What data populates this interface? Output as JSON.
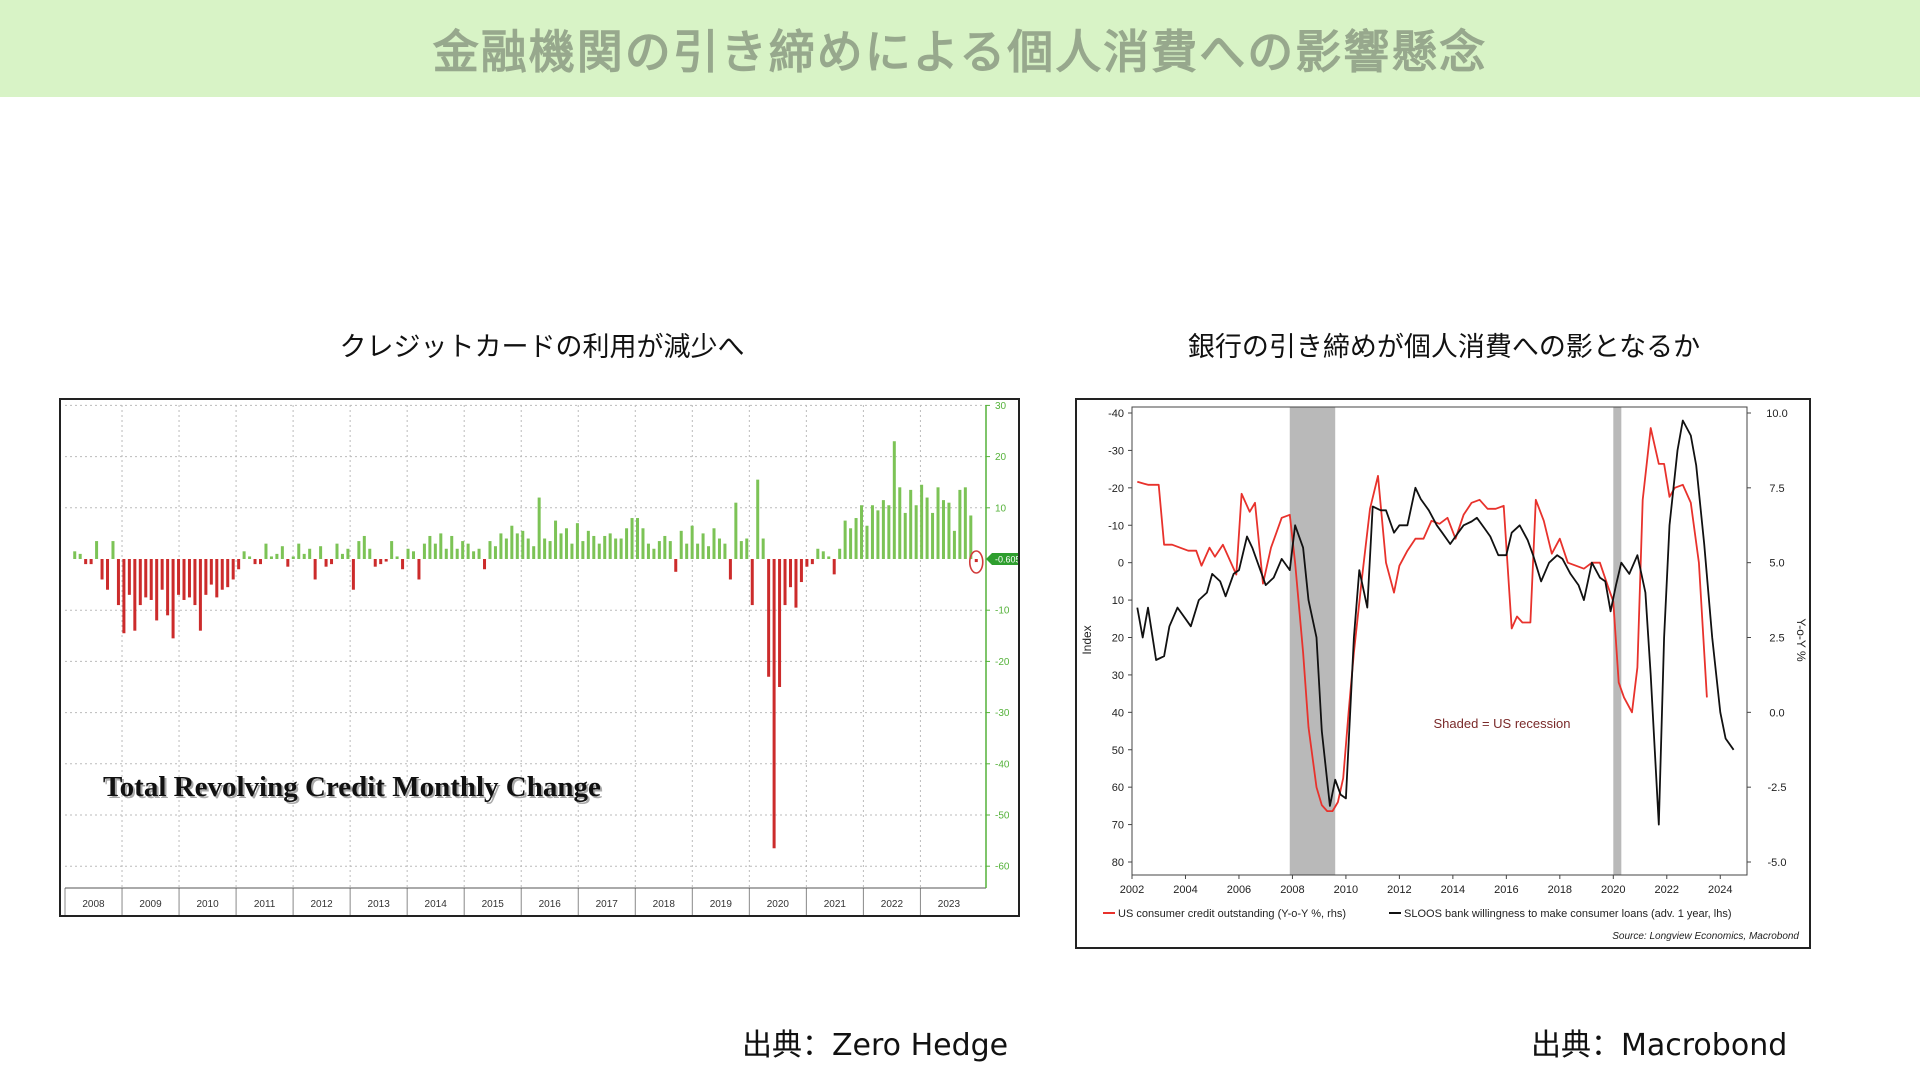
{
  "page": {
    "title": "金融機関の引き締めによる個人消費への影響懸念",
    "left_caption": "クレジットカードの利用が減少へ",
    "right_caption": "銀行の引き締めが個人消費への影となるか",
    "left_source": "出典：Zero Hedge",
    "right_source": "出典：Macrobond"
  },
  "colors": {
    "banner": "#d8f3c6",
    "title_text": "#97a88d",
    "positive_bar": "#7cc356",
    "negative_bar": "#cc2b2b",
    "red_line": "#e8322c",
    "black_line": "#111111",
    "shading": "#b9b9b9"
  },
  "chart_data": [
    {
      "type": "bar",
      "title": "Total Revolving Credit Monthly Change",
      "ylim": [
        -63,
        30
      ],
      "yticks": [
        "30",
        "20",
        "10",
        "-10",
        "-20",
        "-30",
        "-40",
        "-50",
        "-60"
      ],
      "ytick_values": [
        30,
        20,
        10,
        -10,
        -20,
        -30,
        -40,
        -50,
        -60
      ],
      "xtick_labels": [
        "2008",
        "2009",
        "2010",
        "2011",
        "2012",
        "2013",
        "2014",
        "2015",
        "2016",
        "2017",
        "2018",
        "2019",
        "2020",
        "2021",
        "2022",
        "2023"
      ],
      "x_start": 2008.0,
      "x_end": 2024.15,
      "last_value_label": "-0.605",
      "grid": true,
      "values": [
        1.5,
        1.0,
        -1.0,
        -1.0,
        3.5,
        -4.0,
        -6.0,
        3.5,
        -9.0,
        -14.5,
        -7.0,
        -14.0,
        -9.0,
        -7.5,
        -8.0,
        -12.0,
        -6.0,
        -11.0,
        -15.5,
        -7.0,
        -8.0,
        -7.5,
        -9.0,
        -14.0,
        -7.0,
        -5.0,
        -7.5,
        -6.0,
        -5.5,
        -4.0,
        -2.0,
        1.5,
        0.5,
        -1.0,
        -1.0,
        3.0,
        0.5,
        1.0,
        2.5,
        -1.5,
        0.5,
        3.0,
        1.0,
        2.0,
        -4.0,
        2.5,
        -1.5,
        -1.0,
        3.0,
        1.0,
        2.0,
        -6.0,
        3.5,
        4.5,
        2.0,
        -1.5,
        -1.0,
        -0.5,
        3.5,
        0.5,
        -2.0,
        2.0,
        1.5,
        -4.0,
        3.0,
        4.5,
        3.0,
        5.0,
        2.0,
        4.5,
        2.0,
        3.5,
        3.0,
        1.5,
        2.0,
        -2.0,
        3.5,
        2.5,
        5.0,
        4.0,
        6.5,
        5.0,
        5.5,
        4.0,
        2.5,
        12.0,
        4.0,
        3.5,
        7.5,
        5.0,
        6.0,
        3.0,
        7.0,
        3.5,
        5.5,
        4.5,
        3.0,
        4.5,
        5.0,
        4.0,
        4.0,
        6.0,
        8.0,
        8.0,
        6.0,
        3.0,
        2.0,
        3.5,
        4.5,
        3.5,
        -2.5,
        5.5,
        3.0,
        6.5,
        3.0,
        5.0,
        2.5,
        6.0,
        4.0,
        3.0,
        -4.0,
        11.0,
        3.5,
        4.0,
        -9.0,
        15.5,
        4.0,
        -23.0,
        -56.5,
        -25.0,
        -9.0,
        -5.5,
        -9.5,
        -4.5,
        -1.5,
        -1.0,
        2.0,
        1.5,
        0.5,
        -3.0,
        2.0,
        7.5,
        6.0,
        8.0,
        10.5,
        6.5,
        10.5,
        9.5,
        11.5,
        10.5,
        23.0,
        14.0,
        9.0,
        13.5,
        10.5,
        14.5,
        12.0,
        9.0,
        14.0,
        11.5,
        11.0,
        5.5,
        13.5,
        14.0,
        8.5,
        -0.6
      ]
    },
    {
      "type": "line",
      "xlabel": "",
      "ylabel_left": "Index",
      "ylabel_right": "Y-o-Y %",
      "xlim": [
        2002,
        2025
      ],
      "ylim_left": [
        -40,
        80
      ],
      "ylim_right": [
        -5.0,
        10.0
      ],
      "left_axis_inverted": true,
      "xticks": [
        "2002",
        "2004",
        "2006",
        "2008",
        "2010",
        "2012",
        "2014",
        "2016",
        "2018",
        "2020",
        "2022",
        "2024"
      ],
      "xtick_values": [
        2002,
        2004,
        2006,
        2008,
        2010,
        2012,
        2014,
        2016,
        2018,
        2020,
        2022,
        2024
      ],
      "yticks_left": [
        "-40",
        "-30",
        "-20",
        "-10",
        "0",
        "10",
        "20",
        "30",
        "40",
        "50",
        "60",
        "70",
        "80"
      ],
      "ytick_values_left": [
        -40,
        -30,
        -20,
        -10,
        0,
        10,
        20,
        30,
        40,
        50,
        60,
        70,
        80
      ],
      "yticks_right": [
        "10.0",
        "7.5",
        "5.0",
        "2.5",
        "0.0",
        "-2.5",
        "-5.0"
      ],
      "ytick_values_right": [
        10.0,
        7.5,
        5.0,
        2.5,
        0.0,
        -2.5,
        -5.0
      ],
      "shaded_periods": [
        [
          2007.9,
          2009.6
        ],
        [
          2020.0,
          2020.3
        ]
      ],
      "annotation": "Shaded = US recession",
      "legend_position": "bottom",
      "source_note": "Source: Longview Economics, Macrobond",
      "series": [
        {
          "name": "US consumer credit outstanding (Y-o-Y %, rhs)",
          "axis": "right",
          "color": "#e8322c",
          "x": [
            2002.2,
            2002.6,
            2003.0,
            2003.2,
            2003.5,
            2003.8,
            2004.1,
            2004.4,
            2004.6,
            2004.9,
            2005.1,
            2005.4,
            2005.6,
            2005.9,
            2006.1,
            2006.4,
            2006.6,
            2006.9,
            2007.2,
            2007.4,
            2007.6,
            2007.9,
            2008.1,
            2008.4,
            2008.6,
            2008.9,
            2009.1,
            2009.3,
            2009.5,
            2009.7,
            2009.9,
            2010.1,
            2010.3,
            2010.6,
            2010.9,
            2011.2,
            2011.5,
            2011.8,
            2012.0,
            2012.3,
            2012.6,
            2012.9,
            2013.2,
            2013.5,
            2013.8,
            2014.1,
            2014.4,
            2014.7,
            2015.0,
            2015.3,
            2015.6,
            2015.9,
            2016.2,
            2016.4,
            2016.6,
            2016.9,
            2017.1,
            2017.4,
            2017.7,
            2018.0,
            2018.3,
            2018.6,
            2018.9,
            2019.2,
            2019.5,
            2019.8,
            2020.0,
            2020.2,
            2020.4,
            2020.7,
            2020.9,
            2021.1,
            2021.4,
            2021.7,
            2021.9,
            2022.1,
            2022.3,
            2022.6,
            2022.9,
            2023.2,
            2023.5
          ],
          "values": [
            7.7,
            7.6,
            7.6,
            5.6,
            5.6,
            5.5,
            5.4,
            5.4,
            4.9,
            5.5,
            5.2,
            5.6,
            5.2,
            4.6,
            7.3,
            6.7,
            7.0,
            4.3,
            5.5,
            6.0,
            6.5,
            6.6,
            5.0,
            2.0,
            -0.5,
            -2.5,
            -3.1,
            -3.3,
            -3.3,
            -3.0,
            -2.2,
            0.0,
            2.0,
            4.5,
            6.8,
            7.9,
            5.0,
            4.0,
            4.9,
            5.4,
            5.8,
            5.8,
            6.4,
            6.3,
            6.5,
            5.8,
            6.6,
            7.0,
            7.1,
            6.8,
            6.8,
            6.9,
            2.8,
            3.2,
            3.0,
            3.0,
            7.1,
            6.4,
            5.3,
            5.8,
            5.0,
            4.9,
            4.8,
            5.0,
            5.0,
            4.2,
            3.7,
            1.0,
            0.5,
            0.0,
            1.5,
            7.1,
            9.5,
            8.3,
            8.3,
            7.2,
            7.5,
            7.6,
            7.0,
            5.0,
            0.5
          ],
          "value_ticks_note": "Right axis Y-o-Y %"
        },
        {
          "name": "SLOOS bank willingness to make consumer loans (adv. 1 year, lhs)",
          "axis": "left",
          "color": "#111111",
          "x": [
            2002.2,
            2002.4,
            2002.6,
            2002.9,
            2003.2,
            2003.4,
            2003.7,
            2004.0,
            2004.2,
            2004.5,
            2004.8,
            2005.0,
            2005.3,
            2005.5,
            2005.8,
            2006.0,
            2006.3,
            2006.5,
            2006.8,
            2007.0,
            2007.3,
            2007.6,
            2007.9,
            2008.1,
            2008.4,
            2008.6,
            2008.9,
            2009.1,
            2009.4,
            2009.6,
            2009.8,
            2010.0,
            2010.3,
            2010.5,
            2010.8,
            2011.0,
            2011.3,
            2011.5,
            2011.8,
            2012.0,
            2012.3,
            2012.6,
            2012.8,
            2013.1,
            2013.4,
            2013.6,
            2013.9,
            2014.2,
            2014.4,
            2014.7,
            2014.9,
            2015.2,
            2015.4,
            2015.7,
            2016.0,
            2016.2,
            2016.5,
            2016.8,
            2017.0,
            2017.3,
            2017.6,
            2017.9,
            2018.1,
            2018.4,
            2018.7,
            2018.9,
            2019.2,
            2019.5,
            2019.7,
            2019.9,
            2020.1,
            2020.3,
            2020.6,
            2020.9,
            2021.2,
            2021.4,
            2021.7,
            2021.9,
            2022.1,
            2022.4,
            2022.6,
            2022.9,
            2023.1,
            2023.4,
            2023.7,
            2024.0,
            2024.2,
            2024.5
          ],
          "values": [
            12,
            20,
            12,
            26,
            25,
            17,
            12,
            15,
            17,
            10,
            8,
            3,
            5,
            9,
            3,
            2,
            -7,
            -4,
            2,
            6,
            4,
            -1,
            2,
            -10,
            -4,
            10,
            20,
            45,
            65,
            58,
            62,
            63,
            20,
            2,
            12,
            -15,
            -14,
            -14,
            -8,
            -10,
            -10,
            -20,
            -17,
            -14,
            -10,
            -8,
            -5,
            -8,
            -10,
            -11,
            -12,
            -9,
            -7,
            -2,
            -2,
            -8,
            -10,
            -6,
            -2,
            5,
            0,
            -2,
            -1,
            3,
            6,
            10,
            0,
            4,
            5,
            13,
            6,
            0,
            3,
            -2,
            8,
            30,
            70,
            20,
            -10,
            -30,
            -38,
            -34,
            -26,
            -5,
            20,
            40,
            47,
            50
          ],
          "value_ticks_note": "Left axis index (inverted)"
        }
      ]
    }
  ]
}
